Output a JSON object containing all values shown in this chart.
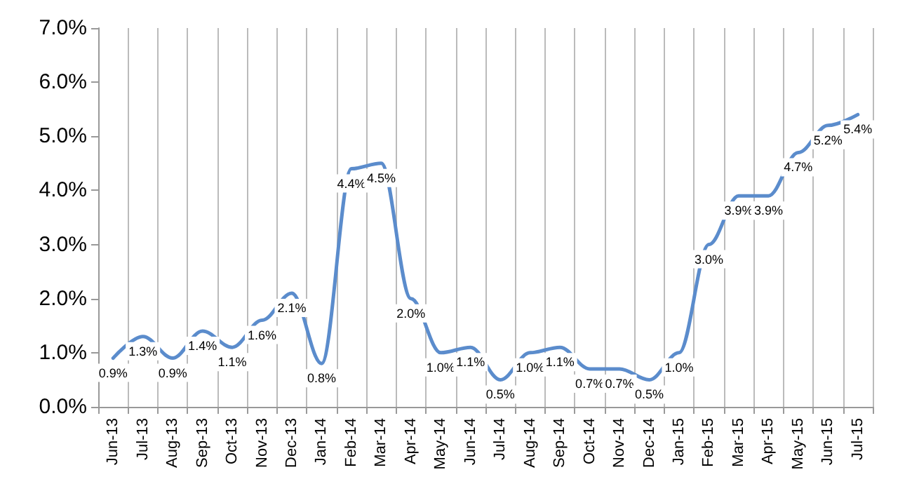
{
  "chart_data": {
    "type": "line",
    "categories": [
      "Jun-13",
      "Jul-13",
      "Aug-13",
      "Sep-13",
      "Oct-13",
      "Nov-13",
      "Dec-13",
      "Jan-14",
      "Feb-14",
      "Mar-14",
      "Apr-14",
      "May-14",
      "Jun-14",
      "Jul-14",
      "Aug-14",
      "Sep-14",
      "Oct-14",
      "Nov-14",
      "Dec-14",
      "Jan-15",
      "Feb-15",
      "Mar-15",
      "Apr-15",
      "May-15",
      "Jun-15",
      "Jul-15"
    ],
    "series": [
      {
        "color": "#5b8ccc",
        "values": [
          0.9,
          1.3,
          0.9,
          1.4,
          1.1,
          1.6,
          2.1,
          0.8,
          4.4,
          4.5,
          2.0,
          1.0,
          1.1,
          0.5,
          1.0,
          1.1,
          0.7,
          0.7,
          0.5,
          1.0,
          3.0,
          3.9,
          3.9,
          4.7,
          5.2,
          5.4
        ],
        "value_labels": [
          "0.9%",
          "1.3%",
          "0.9%",
          "1.4%",
          "1.1%",
          "1.6%",
          "2.1%",
          "0.8%",
          "4.4%",
          "4.5%",
          "2.0%",
          "1.0%",
          "1.1%",
          "0.5%",
          "1.0%",
          "1.1%",
          "0.7%",
          "0.7%",
          "0.5%",
          "1.0%",
          "3.0%",
          "3.9%",
          "3.9%",
          "4.7%",
          "5.2%",
          "5.4%"
        ]
      }
    ],
    "ylim": [
      0,
      7
    ],
    "yticks": [
      {
        "value": 0,
        "label": "0.0%"
      },
      {
        "value": 1,
        "label": "1.0%"
      },
      {
        "value": 2,
        "label": "2.0%"
      },
      {
        "value": 3,
        "label": "3.0%"
      },
      {
        "value": 4,
        "label": "4.0%"
      },
      {
        "value": 5,
        "label": "5.0%"
      },
      {
        "value": 6,
        "label": "6.0%"
      },
      {
        "value": 7,
        "label": "7.0%"
      }
    ],
    "grid": "x",
    "marker": "none",
    "line_style": "solid"
  }
}
